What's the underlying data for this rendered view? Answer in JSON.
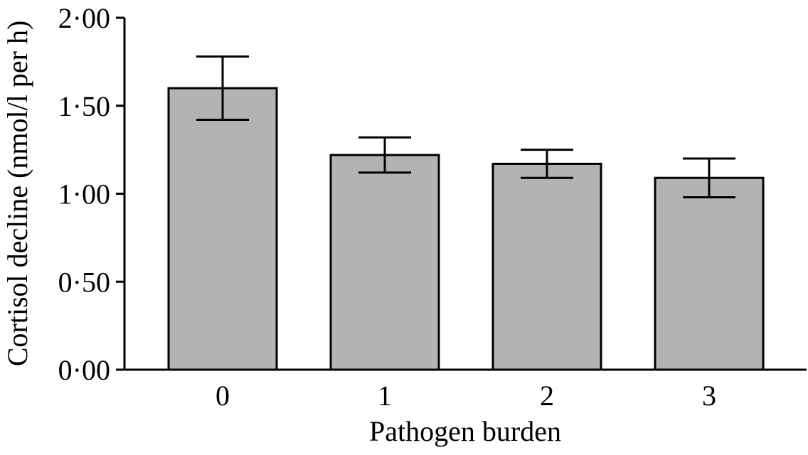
{
  "chart_data": {
    "type": "bar",
    "title": "",
    "xlabel": "Pathogen burden",
    "ylabel": "Cortisol decline (nmol/l per h)",
    "categories": [
      "0",
      "1",
      "2",
      "3"
    ],
    "values": [
      1.6,
      1.22,
      1.17,
      1.09
    ],
    "error_high": [
      1.78,
      1.32,
      1.25,
      1.2
    ],
    "error_low": [
      1.42,
      1.12,
      1.09,
      0.98
    ],
    "ylim": [
      0,
      2.0
    ],
    "yticks": [
      0,
      0.5,
      1.0,
      1.5,
      2.0
    ],
    "ytick_labels": [
      "0·00",
      "0·50",
      "1·00",
      "1·50",
      "2·00"
    ],
    "bar_color": "#b3b3b3",
    "grid": false,
    "legend": "none"
  }
}
